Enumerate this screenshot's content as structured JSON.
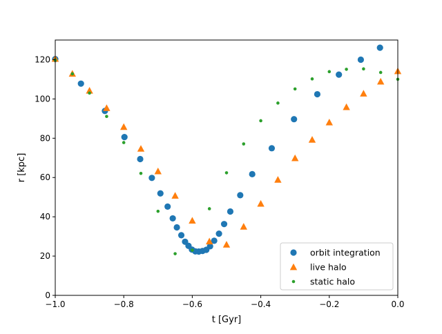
{
  "chart_data": {
    "type": "scatter",
    "title": "",
    "xlabel": "t [Gyr]",
    "ylabel": "r [kpc]",
    "xlim": [
      -1.0,
      0.0
    ],
    "ylim": [
      0,
      130
    ],
    "xticks": [
      -1.0,
      -0.8,
      -0.6,
      -0.4,
      -0.2,
      0.0
    ],
    "xtick_labels": [
      "−1.0",
      "−0.8",
      "−0.6",
      "−0.4",
      "−0.2",
      "0.0"
    ],
    "yticks": [
      0,
      20,
      40,
      60,
      80,
      100,
      120
    ],
    "ytick_labels": [
      "0",
      "20",
      "40",
      "60",
      "80",
      "100",
      "120"
    ],
    "grid": false,
    "legend_position": "lower-right",
    "series": [
      {
        "name": "orbit integration",
        "marker": "circle",
        "color": "#1f77b4",
        "x": [
          -1.0,
          -0.925,
          -0.855,
          -0.798,
          -0.752,
          -0.718,
          -0.693,
          -0.672,
          -0.657,
          -0.645,
          -0.632,
          -0.621,
          -0.611,
          -0.601,
          -0.591,
          -0.581,
          -0.57,
          -0.559,
          -0.548,
          -0.536,
          -0.522,
          -0.507,
          -0.489,
          -0.46,
          -0.425,
          -0.368,
          -0.303,
          -0.235,
          -0.172,
          -0.108,
          -0.052
        ],
        "y": [
          120.3,
          107.8,
          93.9,
          80.6,
          69.4,
          59.8,
          51.9,
          45.2,
          39.2,
          34.6,
          30.6,
          27.3,
          25.2,
          23.3,
          22.4,
          22.3,
          22.6,
          23.2,
          25.0,
          27.8,
          31.4,
          36.3,
          42.7,
          51.0,
          61.7,
          74.9,
          89.7,
          102.4,
          112.4,
          120.0,
          126.1
        ]
      },
      {
        "name": "live halo",
        "marker": "triangle",
        "color": "#ff7f0e",
        "x": [
          -1.0,
          -0.95,
          -0.9,
          -0.85,
          -0.8,
          -0.75,
          -0.7,
          -0.65,
          -0.6,
          -0.55,
          -0.5,
          -0.45,
          -0.4,
          -0.35,
          -0.3,
          -0.25,
          -0.2,
          -0.15,
          -0.1,
          -0.05,
          0.0
        ],
        "y": [
          120.5,
          112.9,
          104.3,
          95.4,
          85.8,
          74.7,
          63.2,
          50.8,
          38.1,
          27.5,
          25.9,
          35.0,
          46.7,
          58.9,
          69.9,
          79.3,
          88.1,
          95.9,
          102.8,
          108.9,
          114.2
        ]
      },
      {
        "name": "static halo",
        "marker": "dot",
        "color": "#2ca02c",
        "x": [
          -1.0,
          -0.95,
          -0.9,
          -0.85,
          -0.8,
          -0.75,
          -0.7,
          -0.65,
          -0.6,
          -0.55,
          -0.5,
          -0.45,
          -0.4,
          -0.35,
          -0.3,
          -0.25,
          -0.2,
          -0.15,
          -0.1,
          -0.05,
          0.0
        ],
        "y": [
          119.8,
          112.8,
          103.0,
          91.1,
          77.8,
          62.1,
          42.8,
          21.2,
          23.0,
          44.1,
          62.4,
          77.1,
          88.9,
          97.9,
          105.1,
          110.2,
          113.9,
          115.1,
          115.3,
          113.5,
          110.0
        ]
      }
    ]
  }
}
